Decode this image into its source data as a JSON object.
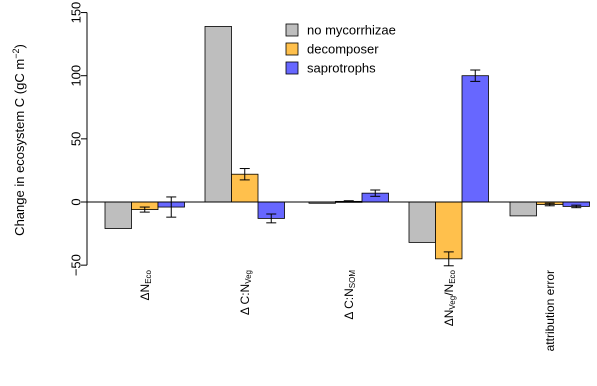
{
  "chart_data": {
    "type": "bar",
    "ylabel": "Change in ecosystem C (gC m⁻²)",
    "ylabel_parts": {
      "main": "Change in ecosystem C (gC m",
      "sup": "−2",
      "end": ")"
    },
    "ylim": [
      -50,
      150
    ],
    "yticks": [
      -50,
      0,
      50,
      100,
      150
    ],
    "legend_position": "top-center",
    "categories": [
      {
        "prefix": "ΔN",
        "sub": "Eco",
        "mid": "",
        "sub2": ""
      },
      {
        "prefix": "Δ C:N",
        "sub": "Veg",
        "mid": "",
        "sub2": ""
      },
      {
        "prefix": "Δ C:N",
        "sub": "SOM",
        "mid": "",
        "sub2": ""
      },
      {
        "prefix": "ΔN",
        "sub": "Veg",
        "mid": "/N",
        "sub2": "Eco"
      },
      {
        "prefix": "attribution error",
        "sub": "",
        "mid": "",
        "sub2": ""
      }
    ],
    "series": [
      {
        "name": "no mycorrhizae",
        "color": "#bebebe",
        "values": [
          -21,
          139,
          -1,
          -32,
          -11
        ],
        "errors": [
          null,
          null,
          null,
          null,
          null
        ]
      },
      {
        "name": "decomposer",
        "color": "#ffc04c",
        "values": [
          -6,
          22,
          0.5,
          -45,
          -2
        ],
        "errors": [
          2,
          4.5,
          0.5,
          5.5,
          1
        ]
      },
      {
        "name": "saprotrophs",
        "color": "#6767ff",
        "values": [
          -4,
          -13,
          7,
          100,
          -3.5
        ],
        "errors": [
          8,
          3.5,
          2.5,
          4.5,
          1
        ]
      }
    ]
  }
}
